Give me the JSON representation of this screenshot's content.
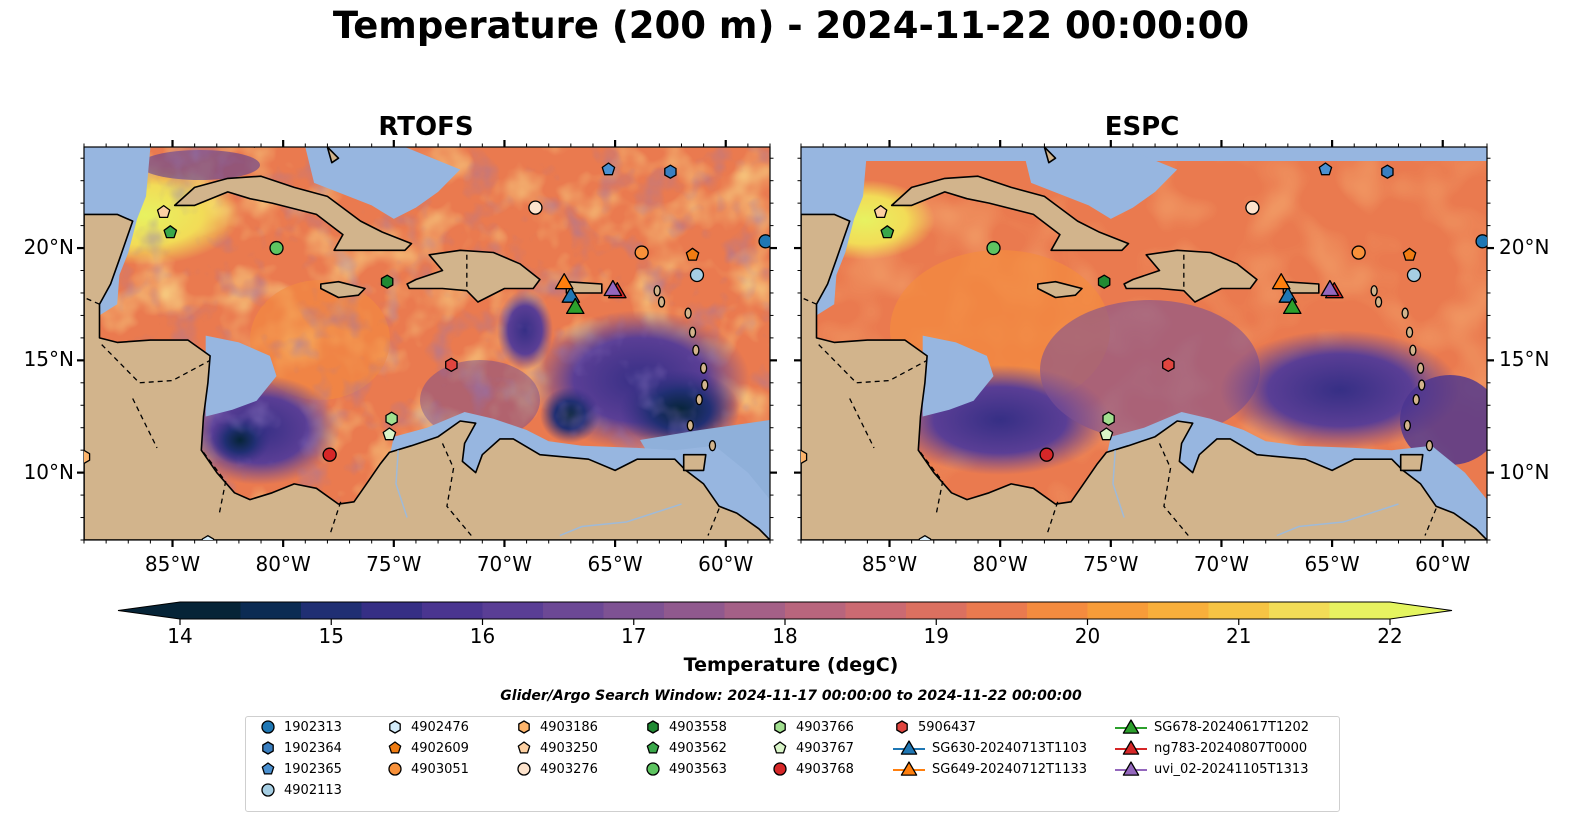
{
  "title": "Temperature (200 m) - 2024-11-22 00:00:00",
  "panels": [
    {
      "title": "RTOFS",
      "variant": "rtofs"
    },
    {
      "title": "ESPC",
      "variant": "espc"
    }
  ],
  "map": {
    "lon_range": [
      -89,
      -58
    ],
    "lat_range": [
      7,
      24.5
    ],
    "lon_ticks": [
      {
        "value": -85,
        "label": "85°W"
      },
      {
        "value": -80,
        "label": "80°W"
      },
      {
        "value": -75,
        "label": "75°W"
      },
      {
        "value": -70,
        "label": "70°W"
      },
      {
        "value": -65,
        "label": "65°W"
      },
      {
        "value": -60,
        "label": "60°W"
      }
    ],
    "lat_ticks": [
      {
        "value": 10,
        "label": "10°N"
      },
      {
        "value": 15,
        "label": "15°N"
      },
      {
        "value": 20,
        "label": "20°N"
      }
    ],
    "land_color": "#d2b48c",
    "shelf_color": "#97b6e0"
  },
  "colorbar": {
    "min": 14,
    "max": 22,
    "step": 0.5,
    "ticks": [
      "14",
      "15",
      "16",
      "17",
      "18",
      "19",
      "20",
      "21",
      "22"
    ],
    "label": "Temperature (degC)",
    "colors": [
      "#062437",
      "#0b2b53",
      "#202f73",
      "#362f85",
      "#4a3590",
      "#5a3e95",
      "#6c4895",
      "#7e5293",
      "#90598e",
      "#a46087",
      "#b8657d",
      "#cb6a72",
      "#db7060",
      "#ea7a4f",
      "#f48b3f",
      "#f79c39",
      "#f8af3b",
      "#f6c444",
      "#f2dc57",
      "#e7f261"
    ],
    "extend_low_color": "#062437",
    "extend_high_color": "#e4f55f"
  },
  "search_window": "Glider/Argo Search Window: 2024-11-17 00:00:00 to 2024-11-22 00:00:00",
  "platforms": [
    {
      "id": "1902313",
      "marker": "circle",
      "color": "#1f77b4",
      "lon": -58.2,
      "lat": 20.3
    },
    {
      "id": "1902364",
      "marker": "hexagon",
      "color": "#3a7fc0",
      "lon": -62.5,
      "lat": 23.4
    },
    {
      "id": "1902365",
      "marker": "pentagon",
      "color": "#4a90d0",
      "lon": -65.3,
      "lat": 23.5
    },
    {
      "id": "4902113",
      "marker": "circle",
      "color": "#a6cee3",
      "lon": -61.3,
      "lat": 18.8
    },
    {
      "id": "4902476",
      "marker": "hexagon",
      "color": "#d4ecfa",
      "lon": -83.4,
      "lat": 6.9
    },
    {
      "id": "4902609",
      "marker": "pentagon",
      "color": "#f07c12",
      "lon": -61.5,
      "lat": 19.7
    },
    {
      "id": "4903051",
      "marker": "circle",
      "color": "#f8913a",
      "lon": -63.8,
      "lat": 19.8
    },
    {
      "id": "4903186",
      "marker": "hexagon",
      "color": "#fdb46b",
      "lon": -89.0,
      "lat": 10.7
    },
    {
      "id": "4903250",
      "marker": "pentagon",
      "color": "#fdd0a2",
      "lon": -85.4,
      "lat": 21.6
    },
    {
      "id": "4903276",
      "marker": "circle",
      "color": "#fde3cc",
      "lon": -68.6,
      "lat": 21.8
    },
    {
      "id": "4903558",
      "marker": "hexagon",
      "color": "#208a33",
      "lon": -75.3,
      "lat": 18.5
    },
    {
      "id": "4903562",
      "marker": "pentagon",
      "color": "#3aa84a",
      "lon": -85.1,
      "lat": 20.7
    },
    {
      "id": "4903563",
      "marker": "circle",
      "color": "#5ec461",
      "lon": -80.3,
      "lat": 20.0
    },
    {
      "id": "4903766",
      "marker": "hexagon",
      "color": "#a1df8f",
      "lon": -75.1,
      "lat": 12.4
    },
    {
      "id": "4903767",
      "marker": "pentagon",
      "color": "#d9f5c8",
      "lon": -75.2,
      "lat": 11.7
    },
    {
      "id": "4903768",
      "marker": "circle",
      "color": "#d62728",
      "lon": -77.9,
      "lat": 10.8
    },
    {
      "id": "5906437",
      "marker": "hexagon",
      "color": "#e0453f",
      "lon": -72.4,
      "lat": 14.8
    },
    {
      "id": "SG630-20240713T1103",
      "marker": "triangle",
      "color": "#1f77b4",
      "lon": -67.0,
      "lat": 17.9
    },
    {
      "id": "SG649-20240712T1133",
      "marker": "triangle",
      "color": "#ff7f0e",
      "lon": -67.3,
      "lat": 18.5
    },
    {
      "id": "SG678-20240617T1202",
      "marker": "triangle",
      "color": "#2ca02c",
      "lon": -66.8,
      "lat": 17.4
    },
    {
      "id": "ng783-20240807T0000",
      "marker": "triangle",
      "color": "#d62728",
      "lon": -64.9,
      "lat": 18.1
    },
    {
      "id": "uvi_02-20241105T1313",
      "marker": "triangle",
      "color": "#9467bd",
      "lon": -65.1,
      "lat": 18.2
    }
  ]
}
